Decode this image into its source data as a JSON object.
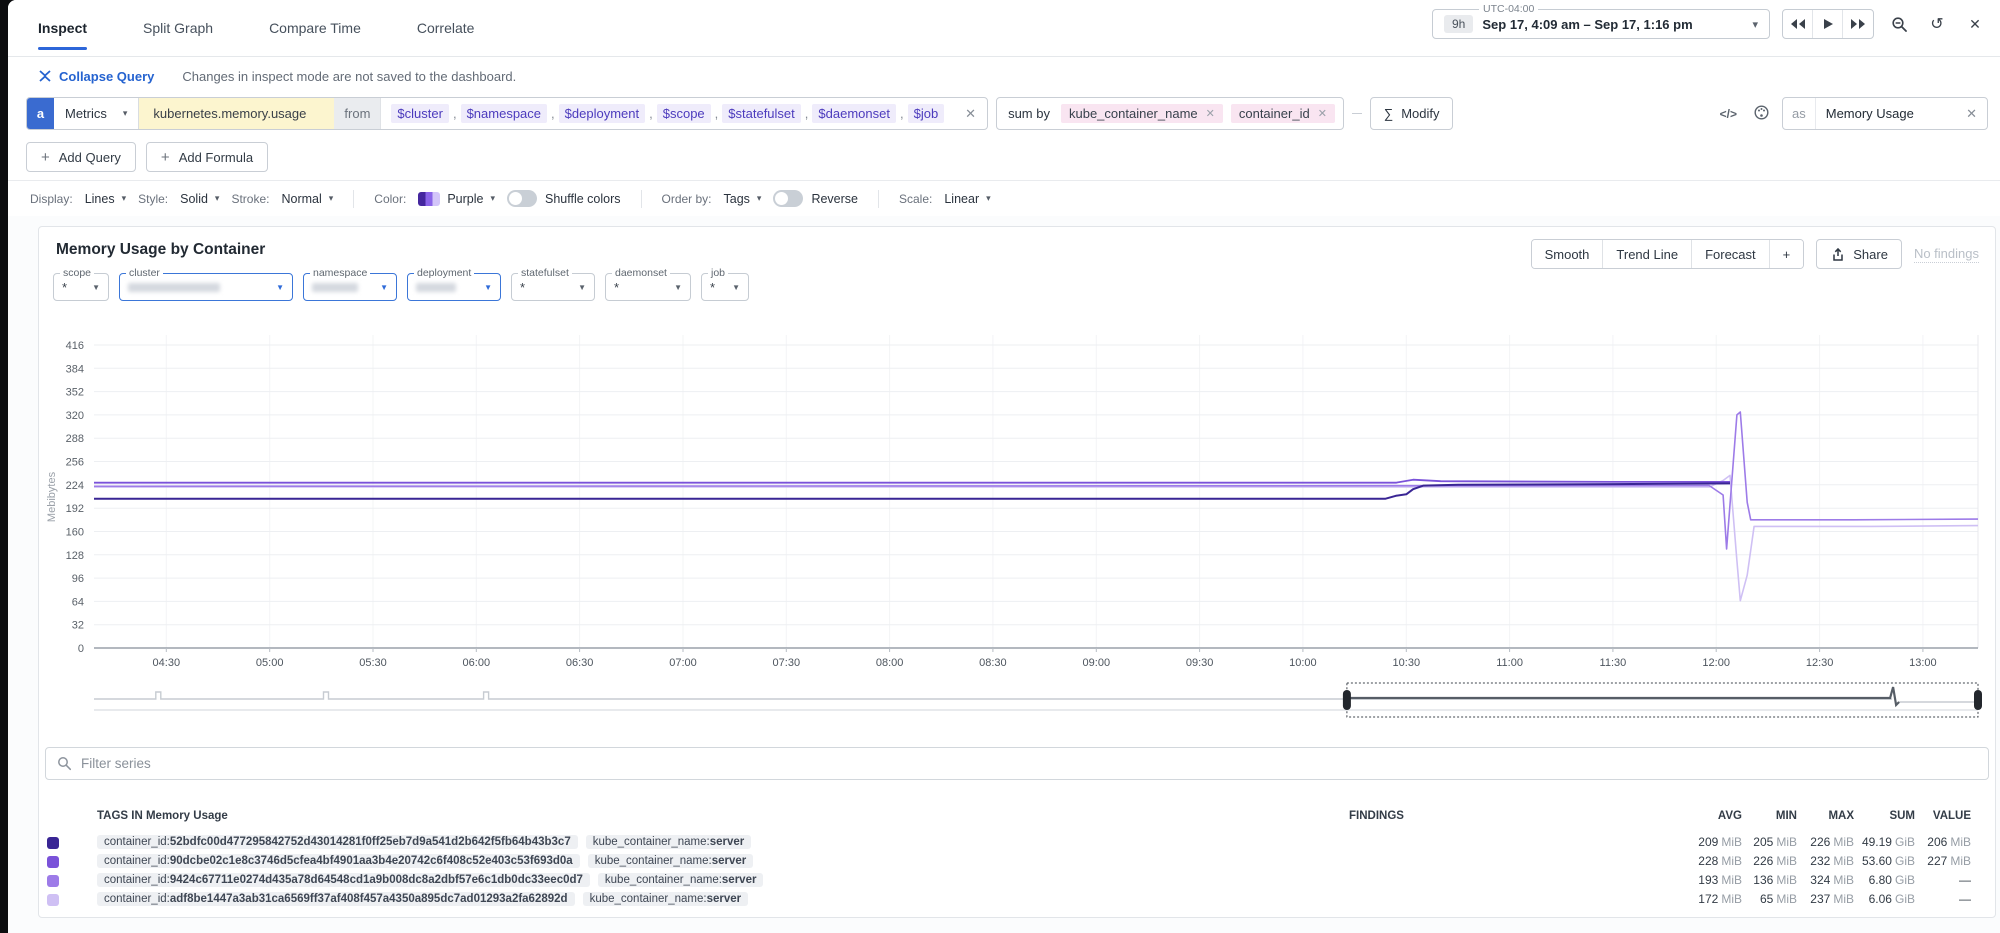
{
  "tabs": [
    {
      "label": "Inspect",
      "active": true
    },
    {
      "label": "Split Graph",
      "active": false
    },
    {
      "label": "Compare Time",
      "active": false
    },
    {
      "label": "Correlate",
      "active": false
    }
  ],
  "time_controls": {
    "timezone": "UTC-04:00",
    "range_badge": "9h",
    "range_text": "Sep 17, 4:09 am – Sep 17, 1:16 pm"
  },
  "subheader": {
    "collapse_label": "Collapse Query",
    "notice": "Changes in inspect mode are not saved to the dashboard."
  },
  "query": {
    "letter": "a",
    "source": "Metrics",
    "metric": "kubernetes.memory.usage",
    "from_label": "from",
    "template_variables": [
      "$cluster",
      "$namespace",
      "$deployment",
      "$scope",
      "$statefulset",
      "$daemonset",
      "$job"
    ],
    "sum_by_label": "sum by",
    "group_bys": [
      "kube_container_name",
      "container_id"
    ],
    "modify_label": "Modify",
    "as_label": "as",
    "alias": "Memory Usage"
  },
  "actions": {
    "add_query_label": "Add Query",
    "add_formula_label": "Add Formula"
  },
  "display_options": {
    "display_label": "Display:",
    "display_value": "Lines",
    "style_label": "Style:",
    "style_value": "Solid",
    "stroke_label": "Stroke:",
    "stroke_value": "Normal",
    "color_label": "Color:",
    "color_value": "Purple",
    "shuffle_label": "Shuffle colors",
    "order_label": "Order by:",
    "order_value": "Tags",
    "reverse_label": "Reverse",
    "scale_label": "Scale:",
    "scale_value": "Linear"
  },
  "panel": {
    "title": "Memory Usage by Container",
    "tools": [
      "Smooth",
      "Trend Line",
      "Forecast",
      "+"
    ],
    "share_label": "Share",
    "findings_label": "No findings",
    "filters": [
      {
        "label": "scope",
        "value": "*",
        "active": false,
        "redacted": false
      },
      {
        "label": "cluster",
        "value": "",
        "active": true,
        "redacted": true
      },
      {
        "label": "namespace",
        "value": "",
        "active": true,
        "redacted": true
      },
      {
        "label": "deployment",
        "value": "",
        "active": true,
        "redacted": true
      },
      {
        "label": "statefulset",
        "value": "*",
        "active": false,
        "redacted": false
      },
      {
        "label": "daemonset",
        "value": "*",
        "active": false,
        "redacted": false
      },
      {
        "label": "job",
        "value": "*",
        "active": false,
        "redacted": false
      }
    ]
  },
  "chart_data": {
    "type": "line",
    "title": "Memory Usage by Container",
    "ylabel": "Mebibytes",
    "y_unit": "MiB",
    "ylim": [
      0,
      448
    ],
    "yticks": [
      0,
      32,
      64,
      96,
      128,
      160,
      192,
      224,
      256,
      288,
      320,
      352,
      384,
      416
    ],
    "x_start": "04:09",
    "x_end": "13:16",
    "xticks": [
      "04:30",
      "05:00",
      "05:30",
      "06:00",
      "06:30",
      "07:00",
      "07:30",
      "08:00",
      "08:30",
      "09:00",
      "09:30",
      "10:00",
      "10:30",
      "11:00",
      "11:30",
      "12:00",
      "12:30",
      "13:00"
    ],
    "grid": "both",
    "legend_position": "bottom-table",
    "series": [
      {
        "name": "container_id:52bdfc00d477295842752d43014281f0ff25eb7d9a541d2b642f5fb64b43b3c7",
        "color": "#392594",
        "points": [
          [
            "04:09",
            205
          ],
          [
            "10:24",
            205
          ],
          [
            "10:27",
            209
          ],
          [
            "10:30",
            211
          ],
          [
            "10:32",
            218
          ],
          [
            "10:35",
            223
          ],
          [
            "10:45",
            224
          ],
          [
            "11:30",
            225
          ],
          [
            "12:04",
            226
          ]
        ]
      },
      {
        "name": "container_id:90dcbe02c1e8c3746d5cfea4bf4901aa3b4e20742c6f408c52e403c53f693d0a",
        "color": "#7a52d9",
        "points": [
          [
            "04:09",
            227
          ],
          [
            "10:27",
            227
          ],
          [
            "10:32",
            231
          ],
          [
            "10:40",
            229
          ],
          [
            "11:30",
            228
          ],
          [
            "12:04",
            228
          ]
        ]
      },
      {
        "name": "container_id:9424c67711e0274d435a78d64548cd1a9b008dc8a2dbf57e6c1db0dc33eec0d7",
        "color": "#9d7be8",
        "points": [
          [
            "04:09",
            222
          ],
          [
            "11:58",
            223
          ],
          [
            "12:02",
            210
          ],
          [
            "12:03",
            136
          ],
          [
            "12:06",
            320
          ],
          [
            "12:07",
            324
          ],
          [
            "12:09",
            200
          ],
          [
            "12:10",
            176
          ],
          [
            "12:40",
            176
          ],
          [
            "13:16",
            177
          ]
        ]
      },
      {
        "name": "container_id:adf8be1447a3ab31ca6569ff37af408f457a4350a895dc7ad01293a2fa62892d",
        "color": "#cfc0f4",
        "points": [
          [
            "04:09",
            221
          ],
          [
            "11:58",
            221
          ],
          [
            "12:02",
            230
          ],
          [
            "12:04",
            237
          ],
          [
            "12:06",
            120
          ],
          [
            "12:07",
            65
          ],
          [
            "12:09",
            100
          ],
          [
            "12:11",
            167
          ],
          [
            "12:45",
            167
          ],
          [
            "13:16",
            168
          ]
        ]
      }
    ],
    "minimap": {
      "brush_start_frac": 0.665,
      "brush_end_frac": 1.0,
      "bump_fracs": [
        0.036,
        0.125,
        0.21
      ],
      "spike_frac": 0.956
    }
  },
  "series_table": {
    "filter_placeholder": "Filter series",
    "tags_header": "TAGS IN Memory Usage",
    "findings_header": "FINDINGS",
    "stat_headers": [
      "AVG",
      "MIN",
      "MAX",
      "SUM",
      "VALUE"
    ],
    "rows": [
      {
        "swatch": "#392594",
        "tags": [
          {
            "key": "container_id",
            "value": "52bdfc00d477295842752d43014281f0ff25eb7d9a541d2b642f5fb64b43b3c7"
          },
          {
            "key": "kube_container_name",
            "value": "server"
          }
        ],
        "stats": [
          [
            "209",
            "MiB"
          ],
          [
            "205",
            "MiB"
          ],
          [
            "226",
            "MiB"
          ],
          [
            "49.19",
            "GiB"
          ],
          [
            "206",
            "MiB"
          ]
        ]
      },
      {
        "swatch": "#7a52d9",
        "tags": [
          {
            "key": "container_id",
            "value": "90dcbe02c1e8c3746d5cfea4bf4901aa3b4e20742c6f408c52e403c53f693d0a"
          },
          {
            "key": "kube_container_name",
            "value": "server"
          }
        ],
        "stats": [
          [
            "228",
            "MiB"
          ],
          [
            "226",
            "MiB"
          ],
          [
            "232",
            "MiB"
          ],
          [
            "53.60",
            "GiB"
          ],
          [
            "227",
            "MiB"
          ]
        ]
      },
      {
        "swatch": "#9d7be8",
        "tags": [
          {
            "key": "container_id",
            "value": "9424c67711e0274d435a78d64548cd1a9b008dc8a2dbf57e6c1db0dc33eec0d7"
          },
          {
            "key": "kube_container_name",
            "value": "server"
          }
        ],
        "stats": [
          [
            "193",
            "MiB"
          ],
          [
            "136",
            "MiB"
          ],
          [
            "324",
            "MiB"
          ],
          [
            "6.80",
            "GiB"
          ],
          [
            "—",
            ""
          ]
        ]
      },
      {
        "swatch": "#cfc0f4",
        "tags": [
          {
            "key": "container_id",
            "value": "adf8be1447a3ab31ca6569ff37af408f457a4350a895dc7ad01293a2fa62892d"
          },
          {
            "key": "kube_container_name",
            "value": "server"
          }
        ],
        "stats": [
          [
            "172",
            "MiB"
          ],
          [
            "65",
            "MiB"
          ],
          [
            "237",
            "MiB"
          ],
          [
            "6.06",
            "GiB"
          ],
          [
            "—",
            ""
          ]
        ]
      }
    ]
  },
  "glyphs": {
    "chevron_down": "▾",
    "triangle_down": "▼",
    "close": "✕",
    "plus": "+",
    "sigma": "∑",
    "restore": "↺",
    "code": "</>",
    "dash": "—",
    "comma": ","
  }
}
